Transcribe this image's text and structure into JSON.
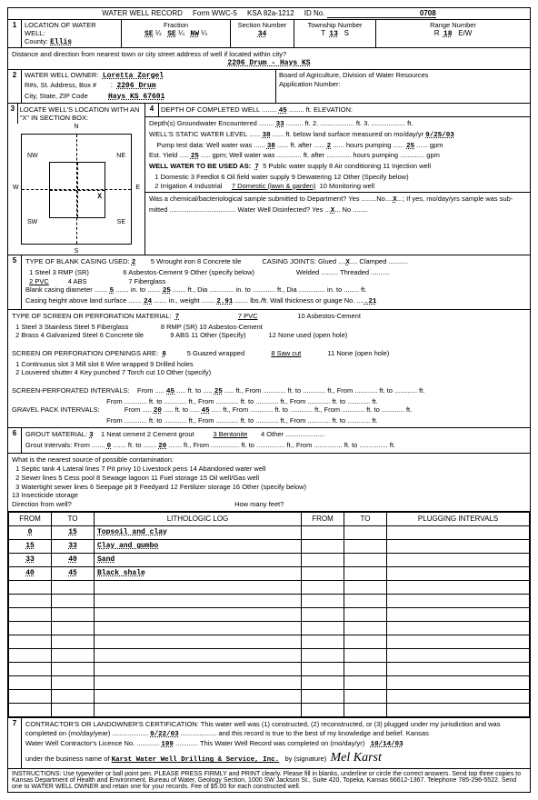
{
  "header": {
    "title": "WATER WELL RECORD",
    "form": "Form WWC-5",
    "ksa": "KSA 82a-1212",
    "id_label": "ID No.",
    "id_no": "0708"
  },
  "loc": {
    "label": "LOCATION OF WATER WELL:",
    "county_label": "County:",
    "county": "Ellis",
    "fraction_label": "Fraction",
    "f1": "SE",
    "f1s": "¼",
    "f2": "SE",
    "f2s": "¼",
    "f3": "NW",
    "f3s": "¼",
    "section_label": "Section Number",
    "section": "34",
    "township_label": "Township Number",
    "township": "13",
    "t_s": "S",
    "range_label": "Range Number",
    "range": "18",
    "r_ew": "E/W",
    "dist_label": "Distance and direction from nearest town or city street address of well if located within city?",
    "dist": "2206 Drum - Hays KS"
  },
  "owner": {
    "label": "WATER WELL OWNER:",
    "name": "Loretta Zorgel",
    "addr_label": "R#s, St. Address, Box #",
    "addr": "2206 Drum",
    "city_label": "City, State, ZIP Code",
    "city": "Hays KS 67601",
    "board": "Board of Agriculture, Division of Water Resources",
    "appno": "Application Number:"
  },
  "locate": {
    "label": "LOCATE WELL'S LOCATION WITH AN \"X\" IN SECTION BOX:",
    "n": "N",
    "s": "S",
    "e": "E",
    "w": "W",
    "nw": "NW",
    "ne": "NE",
    "sw": "SW",
    "se": "SE"
  },
  "depth": {
    "label": "DEPTH OF COMPLETED WELL",
    "depth": "45",
    "elev_label": "ft. ELEVATION:",
    "gw_label": "Depth(s) Groundwater Encountered",
    "gw1": "33",
    "gw_ft2": "ft. 2.",
    "gw_ft3": "ft. 3.",
    "static_label": "WELL'S STATIC WATER LEVEL",
    "static": "38",
    "static_after": "ft. below land surface measured on mo/day/yr",
    "static_date": "9/25/03",
    "pump_label": "Pump test data: Well water was",
    "pump_val": "38",
    "pump_after": "ft. after",
    "pump_hours": "2",
    "pump_hoursafter": "hours pumping",
    "pump_gpm": "25",
    "pump_gpmlabel": "gpm",
    "est_label": "Est. Yield",
    "est_val": "25",
    "est_after": "gpm; Well water was",
    "est_after2": "ft. after",
    "est_after3": "hours pumping",
    "use_label": "WELL WATER TO BE USED AS:",
    "use_7": "7",
    "use_opts": "5 Public water supply       8 Air conditioning      11 Injection well",
    "use_line2": "1 Domestic    3 Feedlot         6 Oil field water supply    9 Dewatering          12 Other (Specify below)",
    "use_line3": "2 Irrigation     4 Industrial",
    "use_sel": "7 Domestic (lawn & garden)",
    "use_line3b": "10 Monitoring well",
    "chem_label": "Was a chemical/bacteriological sample submitted to Department? Yes ........No....",
    "chem_x": "X",
    "chem_after": "; If yes, mo/day/yrs sample was sub-",
    "chem_line2": "mitted",
    "disinfect": "Water Well Disinfected? Yes",
    "disinfect_x": "X",
    "disinfect_no": "No"
  },
  "casing": {
    "label": "TYPE OF BLANK CASING USED:",
    "val": "2",
    "opts1": "1 Steel       3 RMP (SR)",
    "opts2": "2 PVC",
    "opts2b": "4 ABS",
    "opts3": "5 Wrought iron       8 Concrete tile",
    "opts4": "6 Asbestos-Cement  9 Other (specify below)",
    "opts5": "7 Fiberglass",
    "joints_label": "CASING JOINTS: Glued",
    "joints_x": "X",
    "joints_after": "Clamped ..........",
    "joints_line2": "Welded ......... Threaded ..........",
    "dia_label": "Blank casing diameter",
    "dia": "5",
    "dia_to": "in. to",
    "dia_to_val": "25",
    "dia_after": "ft., Dia ............. in. to ............ ft., Dia .............. in. to ........ ft.",
    "height_label": "Casing height above land surface",
    "height": "24",
    "weight_label": "in., weight",
    "weight": "2.91",
    "weight_after": "lbs./ft. Wall thickness or guage No.",
    "gauge": ".21"
  },
  "screen": {
    "label": "TYPE OF SCREEN OR PERFORATION MATERIAL:",
    "val": "7",
    "opts1": "1 Steel           3 Stainless Steel      5 Fiberglass",
    "opts2": "2 Brass          4 Galvanized Steel   6 Concrete tile",
    "sel": "7 PVC",
    "opts3": "8 RMP (SR)       10 Asbestos-Cement",
    "opts4": "9 ABS              11 Other (Specify)",
    "opts5": "12 None used (open hole)",
    "open_label": "SCREEN OR PERFORATION OPENINGS ARE:",
    "open_val": "8",
    "open_opts1": "5 Guazed wrapped",
    "open_sel": "8 Saw cut",
    "open_opts2": "11 None (open hole)",
    "open_line2": "1 Continuous slot        3 Mill slot                    6 Wire wrapped           9 Drilled holes",
    "open_line3": "2 Louvered shutter      4 Key punched             7 Torch cut                10 Other (specify)",
    "int_label": "SCREEN-PERFORATED INTERVALS:",
    "int_from": "From",
    "int_f1": "45",
    "int_to": "ft. to",
    "int_t1": "25",
    "int_after": "ft., From ............ ft. to ............ ft., From ............ ft. to ............ ft.",
    "gravel_label": "GRAVEL PACK INTERVALS:",
    "gravel_f1": "20",
    "gravel_t1": "45"
  },
  "grout": {
    "label": "GROUT MATERIAL:",
    "val": "3",
    "opts": "1 Neat cement        2 Cement grout",
    "sel": "3 Bentonite",
    "opts2": "4 Other",
    "int_label": "Grout Intervals:    From",
    "int_f": "0",
    "int_to": "ft. to",
    "int_t": "20",
    "int_after": "ft., From ............... ft. to ............... ft., From ............... ft. to ............... ft."
  },
  "contam": {
    "label": "What is the nearest source of possible contamination:",
    "opts1": "1 Septic tank           4 Lateral lines              7 Pit privy                 10 Livestock pens        14 Abandoned water well",
    "opts2": "2 Sewer lines           5 Cess pool                 8 Sewage lagoon        11 Fuel storage            15 Oil well/Gas well",
    "opts3": "3 Watertight sewer lines  6 Seepage pit          9 Feedyard               12 Fertilizer storage      16 Other (specify below)",
    "opts4": "                                                                                                   13 Insecticide storage",
    "dir_label": "Direction from well?",
    "howmany": "How many feet?"
  },
  "log": {
    "h1": "FROM",
    "h2": "TO",
    "h3": "LITHOLOGIC LOG",
    "h4": "FROM",
    "h5": "TO",
    "h6": "PLUGGING INTERVALS",
    "rows": [
      {
        "from": "0",
        "to": "15",
        "desc": "Topsoil and clay"
      },
      {
        "from": "15",
        "to": "33",
        "desc": "Clay and gumbo"
      },
      {
        "from": "33",
        "to": "40",
        "desc": "Sand"
      },
      {
        "from": "40",
        "to": "45",
        "desc": "Black shale"
      }
    ]
  },
  "cert": {
    "label": "CONTRACTOR'S OR LANDOWNER'S CERTIFICATION: This water well was (1) constructed, (2) reconstructed, or (3) plugged under my jurisdiction and was",
    "completed_label": "completed on (mo/day/year)",
    "completed": "9/22/03",
    "completed_after": "and this record is true to the best of my knowledge and belief. Kansas",
    "lic_label": "Water Well Contractor's Licence No.",
    "lic": "199",
    "lic_after": "This Water Well Record was completed on (mo/day/yr)",
    "rec_date": "10/14/03",
    "biz_label": "under the business name of",
    "biz": "Karst Water Well Drilling & Service, Inc.",
    "sig_label": "by (signature)",
    "sig": "Mel Karst",
    "inst": "INSTRUCTIONS: Use typewriter or ball point pen. PLEASE PRESS FIRMLY and PRINT clearly. Please fill in blanks, underline or circle the correct answers. Send top three copies to Kansas Department of Health and Environment, Bureau of Water, Geology Section, 1000 SW Jackson St., Suite 420, Topeka, Kansas 66612-1367. Telephone 785-296-5522. Send one to WATER WELL OWNER and retain one for your records. Fee of $5.00 for each constructed well."
  }
}
